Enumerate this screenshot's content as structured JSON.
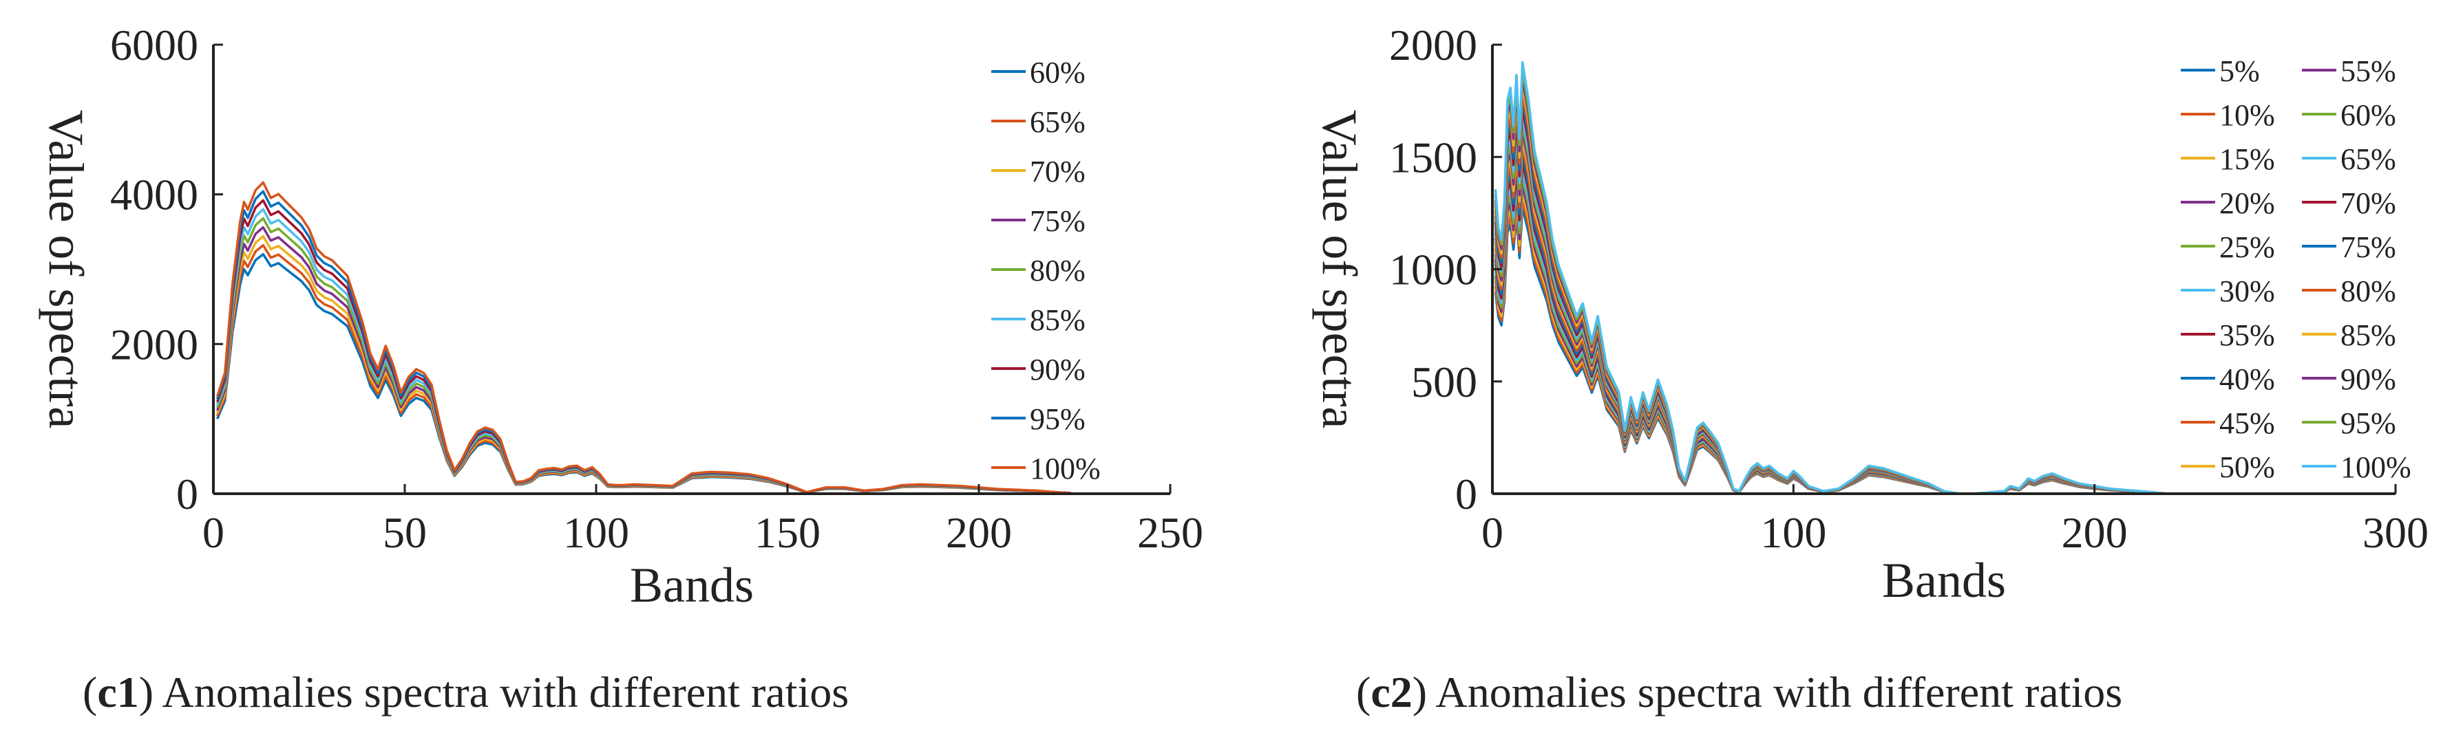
{
  "chart_data": [
    {
      "type": "line",
      "id": "c1",
      "xlabel": "Bands",
      "ylabel": "Value of spectra",
      "xlim": [
        0,
        250
      ],
      "ylim": [
        0,
        6000
      ],
      "xticks": [
        0,
        50,
        100,
        150,
        200,
        250
      ],
      "yticks": [
        0,
        2000,
        4000,
        6000
      ],
      "x_tick_labels": [
        "0",
        "50",
        "100",
        "150",
        "200",
        "250"
      ],
      "y_tick_labels": [
        "0",
        "2000",
        "4000",
        "6000"
      ],
      "legend_location": "top-right",
      "caption_tag": "c1",
      "caption_text": " Anomalies spectra with different ratios",
      "base_x": [
        1,
        3,
        5,
        7,
        8,
        9,
        11,
        13,
        15,
        17,
        19,
        21,
        23,
        25,
        27,
        29,
        31,
        33,
        35,
        37,
        39,
        41,
        43,
        45,
        47,
        49,
        51,
        53,
        55,
        57,
        59,
        61,
        63,
        65,
        67,
        69,
        71,
        73,
        75,
        77,
        79,
        81,
        83,
        85,
        87,
        89,
        91,
        93,
        95,
        97,
        99,
        101,
        103,
        105,
        107,
        110,
        115,
        120,
        125,
        130,
        135,
        140,
        145,
        150,
        155,
        160,
        165,
        170,
        175,
        180,
        185,
        190,
        195,
        200,
        205,
        210,
        215,
        220,
        224
      ],
      "base_y": [
        1250,
        1550,
        2700,
        3500,
        3750,
        3650,
        3900,
        4000,
        3800,
        3850,
        3750,
        3650,
        3550,
        3400,
        3150,
        3050,
        3000,
        2900,
        2800,
        2500,
        2200,
        1800,
        1600,
        1900,
        1650,
        1300,
        1500,
        1600,
        1550,
        1400,
        950,
        550,
        300,
        450,
        650,
        800,
        850,
        820,
        700,
        400,
        150,
        160,
        200,
        300,
        320,
        330,
        310,
        350,
        360,
        300,
        340,
        250,
        120,
        110,
        110,
        120,
        110,
        100,
        260,
        280,
        270,
        250,
        200,
        120,
        20,
        80,
        80,
        40,
        60,
        110,
        120,
        110,
        100,
        80,
        60,
        50,
        40,
        20,
        10
      ],
      "scales": [
        0.8,
        0.83,
        0.86,
        0.89,
        0.92,
        0.95,
        0.98,
        1.01,
        1.04
      ],
      "series": [
        {
          "name": "60%",
          "color": "#0072BD"
        },
        {
          "name": "65%",
          "color": "#D95319"
        },
        {
          "name": "70%",
          "color": "#EDB120"
        },
        {
          "name": "75%",
          "color": "#7E2F8E"
        },
        {
          "name": "80%",
          "color": "#77AC30"
        },
        {
          "name": "85%",
          "color": "#4DBEEE"
        },
        {
          "name": "90%",
          "color": "#A2142F"
        },
        {
          "name": "95%",
          "color": "#0072BD"
        },
        {
          "name": "100%",
          "color": "#D95319"
        }
      ]
    },
    {
      "type": "line",
      "id": "c2",
      "xlabel": "Bands",
      "ylabel": "Value of spectra",
      "xlim": [
        0,
        300
      ],
      "ylim": [
        0,
        2000
      ],
      "xticks": [
        0,
        100,
        200,
        300
      ],
      "yticks": [
        0,
        500,
        1000,
        1500,
        2000
      ],
      "x_tick_labels": [
        "0",
        "100",
        "200",
        "300"
      ],
      "y_tick_labels": [
        "0",
        "500",
        "1000",
        "1500",
        "2000"
      ],
      "legend_location": "top-right",
      "caption_tag": "c2",
      "caption_text": " Anomalies spectra with different ratios",
      "base_x": [
        1,
        2,
        3,
        4,
        5,
        6,
        7,
        8,
        9,
        10,
        12,
        14,
        16,
        18,
        20,
        22,
        25,
        28,
        30,
        33,
        35,
        38,
        40,
        42,
        44,
        46,
        48,
        50,
        52,
        55,
        58,
        60,
        62,
        64,
        66,
        68,
        70,
        72,
        75,
        78,
        80,
        82,
        84,
        86,
        88,
        90,
        92,
        95,
        98,
        100,
        102,
        105,
        110,
        115,
        120,
        125,
        130,
        135,
        140,
        145,
        150,
        155,
        160,
        165,
        170,
        172,
        175,
        178,
        180,
        183,
        186,
        190,
        195,
        200,
        205,
        210,
        215,
        220,
        224
      ],
      "base_y": [
        1200,
        1050,
        1000,
        1150,
        1550,
        1600,
        1450,
        1650,
        1400,
        1700,
        1550,
        1350,
        1250,
        1150,
        1000,
        900,
        800,
        700,
        750,
        600,
        700,
        500,
        450,
        400,
        250,
        380,
        300,
        400,
        330,
        450,
        350,
        250,
        100,
        50,
        150,
        260,
        280,
        250,
        200,
        100,
        20,
        10,
        60,
        100,
        120,
        100,
        110,
        80,
        60,
        90,
        70,
        30,
        10,
        20,
        60,
        110,
        100,
        80,
        60,
        40,
        10,
        0,
        0,
        5,
        10,
        30,
        20,
        60,
        50,
        70,
        80,
        60,
        40,
        30,
        20,
        15,
        10,
        5,
        0
      ],
      "scales": [
        0.75,
        0.77,
        0.79,
        0.81,
        0.83,
        0.85,
        0.87,
        0.89,
        0.91,
        0.93,
        0.95,
        0.97,
        0.99,
        1.01,
        1.03,
        1.05,
        1.07,
        1.09,
        1.11,
        1.13
      ],
      "legend_rows": 10,
      "series": [
        {
          "name": "5%",
          "color": "#0072BD"
        },
        {
          "name": "10%",
          "color": "#D95319"
        },
        {
          "name": "15%",
          "color": "#EDB120"
        },
        {
          "name": "20%",
          "color": "#7E2F8E"
        },
        {
          "name": "25%",
          "color": "#77AC30"
        },
        {
          "name": "30%",
          "color": "#4DBEEE"
        },
        {
          "name": "35%",
          "color": "#A2142F"
        },
        {
          "name": "40%",
          "color": "#0072BD"
        },
        {
          "name": "45%",
          "color": "#D95319"
        },
        {
          "name": "50%",
          "color": "#EDB120"
        },
        {
          "name": "55%",
          "color": "#7E2F8E"
        },
        {
          "name": "60%",
          "color": "#77AC30"
        },
        {
          "name": "65%",
          "color": "#4DBEEE"
        },
        {
          "name": "70%",
          "color": "#A2142F"
        },
        {
          "name": "75%",
          "color": "#0072BD"
        },
        {
          "name": "80%",
          "color": "#D95319"
        },
        {
          "name": "85%",
          "color": "#EDB120"
        },
        {
          "name": "90%",
          "color": "#7E2F8E"
        },
        {
          "name": "95%",
          "color": "#77AC30"
        },
        {
          "name": "100%",
          "color": "#4DBEEE"
        }
      ]
    }
  ]
}
